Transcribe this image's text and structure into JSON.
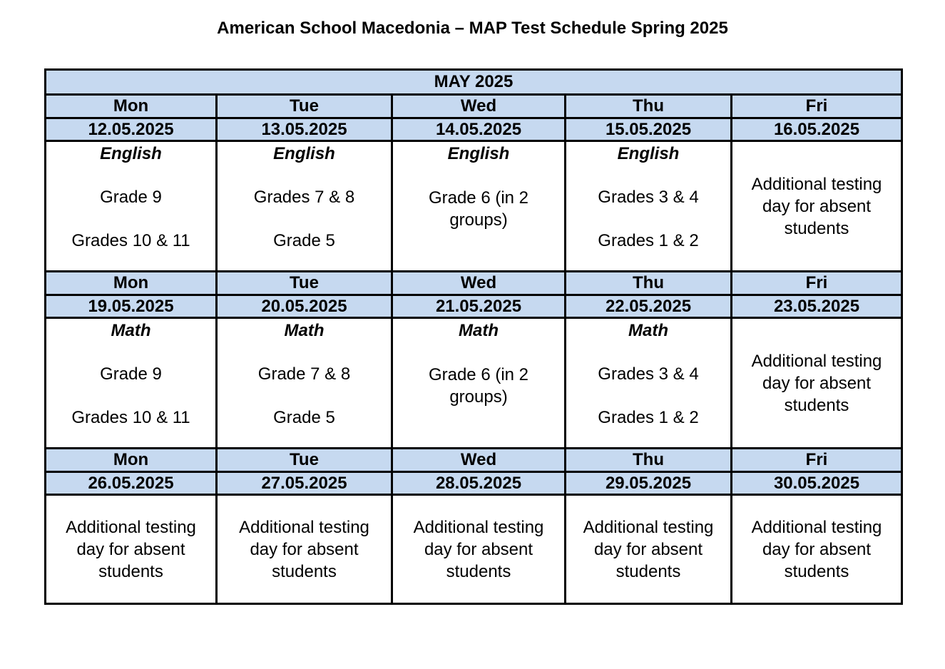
{
  "title": "American School Macedonia – MAP Test Schedule Spring 2025",
  "month": "MAY 2025",
  "days": [
    "Mon",
    "Tue",
    "Wed",
    "Thu",
    "Fri"
  ],
  "weeks": [
    {
      "dates": [
        "12.05.2025",
        "13.05.2025",
        "14.05.2025",
        "15.05.2025",
        "16.05.2025"
      ],
      "subject": "English",
      "cells": [
        {
          "line1": "Grade 9",
          "line2": "Grades 10 & 11"
        },
        {
          "line1": "Grades 7 & 8",
          "line2": "Grade 5"
        },
        {
          "line1": "Grade 6 (in 2 groups)",
          "line2": ""
        },
        {
          "line1": "Grades 3 & 4",
          "line2": "Grades 1 & 2"
        },
        {
          "text": "Additional testing day for absent students"
        }
      ]
    },
    {
      "dates": [
        "19.05.2025",
        "20.05.2025",
        "21.05.2025",
        "22.05.2025",
        "23.05.2025"
      ],
      "subject": "Math",
      "cells": [
        {
          "line1": "Grade 9",
          "line2": "Grades 10 & 11"
        },
        {
          "line1": "Grade 7 & 8",
          "line2": "Grade 5"
        },
        {
          "line1": "Grade 6 (in 2 groups)",
          "line2": ""
        },
        {
          "line1": "Grades 3 & 4",
          "line2": "Grades 1 & 2"
        },
        {
          "text": "Additional testing day for absent students"
        }
      ]
    },
    {
      "dates": [
        "26.05.2025",
        "27.05.2025",
        "28.05.2025",
        "29.05.2025",
        "30.05.2025"
      ],
      "cells": [
        {
          "text": "Additional testing day for absent students"
        },
        {
          "text": "Additional testing day for absent students"
        },
        {
          "text": "Additional testing day for absent students"
        },
        {
          "text": "Additional testing day for absent students"
        },
        {
          "text": "Additional testing day for absent students"
        }
      ]
    }
  ]
}
